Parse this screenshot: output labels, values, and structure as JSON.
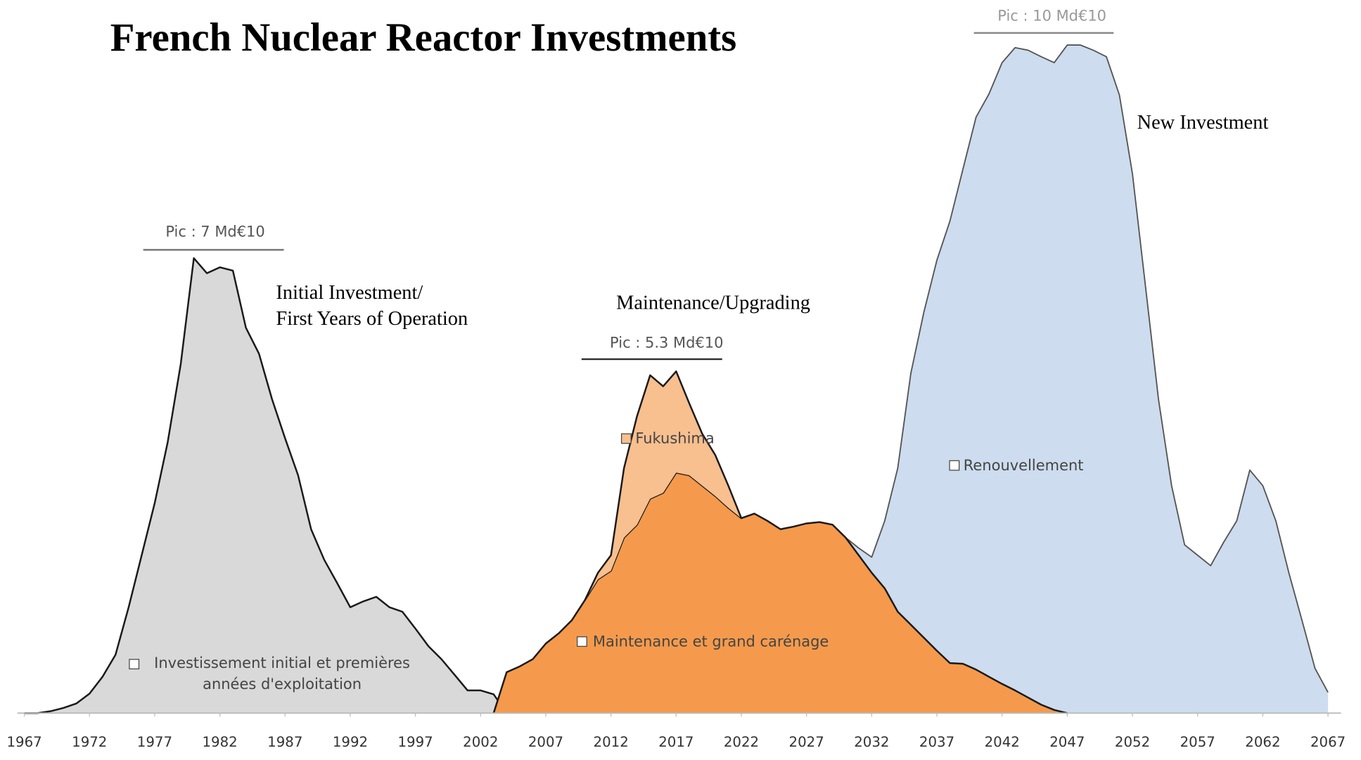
{
  "chart_data": {
    "type": "area",
    "title": "French Nuclear Reactor Investments",
    "annotations": [
      "Pic : 7 Md€10",
      "Pic : 5.3 Md€10",
      "Pic : 10 Md€10",
      "Initial Investment/",
      "First Years of Operation",
      "Maintenance/Upgrading",
      "New Investment"
    ],
    "xlim": [
      1967,
      2067
    ],
    "xticks": [
      1967,
      1972,
      1977,
      1982,
      1987,
      1992,
      1997,
      2002,
      2007,
      2012,
      2017,
      2022,
      2027,
      2032,
      2037,
      2042,
      2047,
      2052,
      2057,
      2062,
      2067
    ],
    "ylim": [
      0,
      11
    ],
    "x": [
      1967,
      1968,
      1969,
      1970,
      1971,
      1972,
      1973,
      1974,
      1975,
      1976,
      1977,
      1978,
      1979,
      1980,
      1981,
      1982,
      1983,
      1984,
      1985,
      1986,
      1987,
      1988,
      1989,
      1990,
      1991,
      1992,
      1993,
      1994,
      1995,
      1996,
      1997,
      1998,
      1999,
      2000,
      2001,
      2002,
      2003,
      2004,
      2005,
      2006,
      2007,
      2008,
      2009,
      2010,
      2011,
      2012,
      2013,
      2014,
      2015,
      2016,
      2017,
      2018,
      2019,
      2020,
      2021,
      2022,
      2023,
      2024,
      2025,
      2026,
      2027,
      2028,
      2029,
      2030,
      2031,
      2032,
      2033,
      2034,
      2035,
      2036,
      2037,
      2038,
      2039,
      2040,
      2041,
      2042,
      2043,
      2044,
      2045,
      2046,
      2047,
      2048,
      2049,
      2050,
      2051,
      2052,
      2053,
      2054,
      2055,
      2056,
      2057,
      2058,
      2059,
      2060,
      2061,
      2062,
      2063,
      2064,
      2065,
      2066,
      2067
    ],
    "series": [
      {
        "name": "Investissement initial et premières années d'exploitation",
        "color": "#d9d9d9",
        "values": [
          0,
          0,
          0.03,
          0.08,
          0.15,
          0.3,
          0.56,
          0.9,
          1.63,
          2.43,
          3.23,
          4.17,
          5.37,
          7.0,
          6.77,
          6.86,
          6.81,
          5.93,
          5.53,
          4.83,
          4.23,
          3.66,
          2.83,
          2.36,
          2.0,
          1.63,
          1.72,
          1.79,
          1.63,
          1.56,
          1.3,
          1.03,
          0.83,
          0.59,
          0.35,
          0.35,
          0.29,
          0,
          null,
          null,
          null,
          null,
          null,
          null,
          null,
          null,
          null,
          null,
          null,
          null,
          null,
          null,
          null,
          null,
          null,
          null,
          null,
          null,
          null,
          null,
          null,
          null,
          null,
          null,
          null,
          null,
          null,
          null,
          null,
          null,
          null,
          null,
          null,
          null,
          null,
          null,
          null,
          null,
          null,
          null,
          null,
          null,
          null,
          null,
          null,
          null,
          null,
          null,
          null,
          null,
          null,
          null,
          null,
          null,
          null,
          null,
          null,
          null,
          null,
          null,
          null
        ]
      },
      {
        "name": "Maintenance et grand carénage",
        "color": "#f59a4c",
        "values": [
          null,
          null,
          null,
          null,
          null,
          null,
          null,
          null,
          null,
          null,
          null,
          null,
          null,
          null,
          null,
          null,
          null,
          null,
          null,
          null,
          null,
          null,
          null,
          null,
          null,
          null,
          null,
          null,
          null,
          null,
          null,
          null,
          null,
          null,
          null,
          null,
          0,
          0.63,
          0.72,
          0.83,
          1.07,
          1.23,
          1.43,
          1.74,
          2.06,
          2.19,
          2.7,
          2.9,
          3.3,
          3.39,
          3.7,
          3.66,
          3.5,
          3.34,
          3.16,
          3.0,
          3.07,
          2.96,
          2.83,
          2.87,
          2.92,
          2.94,
          2.9,
          2.7,
          2.43,
          2.16,
          1.92,
          1.56,
          1.36,
          1.16,
          0.96,
          0.77,
          0.76,
          0.67,
          0.56,
          0.45,
          0.35,
          0.24,
          0.13,
          0.05,
          0,
          null,
          null,
          null,
          null,
          null,
          null,
          null,
          null,
          null,
          null,
          null,
          null,
          null,
          null,
          null,
          null,
          null,
          null,
          null,
          null
        ]
      },
      {
        "name": "Fukushima",
        "color": "#f8bf8f",
        "stacked": true,
        "values": [
          null,
          null,
          null,
          null,
          null,
          null,
          null,
          null,
          null,
          null,
          null,
          null,
          null,
          null,
          null,
          null,
          null,
          null,
          null,
          null,
          null,
          null,
          null,
          null,
          null,
          null,
          null,
          null,
          null,
          null,
          null,
          null,
          null,
          null,
          null,
          null,
          null,
          null,
          null,
          null,
          null,
          null,
          null,
          0,
          0.1,
          0.24,
          1.07,
          1.67,
          1.9,
          1.64,
          1.56,
          1.11,
          0.8,
          0.63,
          0.34,
          0,
          null,
          null,
          null,
          null,
          null,
          null,
          null,
          null,
          null,
          null,
          null,
          null,
          null,
          null,
          null,
          null,
          null,
          null,
          null,
          null,
          null,
          null,
          null,
          null,
          null,
          null,
          null,
          null,
          null,
          null,
          null,
          null,
          null,
          null,
          null,
          null,
          null,
          null,
          null,
          null,
          null,
          null,
          null,
          null,
          null
        ]
      },
      {
        "name": "Renouvellement",
        "color": "#cddcee",
        "values": [
          null,
          null,
          null,
          null,
          null,
          null,
          null,
          null,
          null,
          null,
          null,
          null,
          null,
          null,
          null,
          null,
          null,
          null,
          null,
          null,
          null,
          null,
          null,
          null,
          null,
          null,
          null,
          null,
          null,
          null,
          null,
          null,
          null,
          null,
          null,
          null,
          null,
          null,
          null,
          null,
          null,
          null,
          null,
          null,
          null,
          null,
          null,
          null,
          null,
          null,
          null,
          null,
          null,
          null,
          null,
          null,
          null,
          null,
          null,
          null,
          null,
          null,
          null,
          2.7,
          2.54,
          2.4,
          2.96,
          3.77,
          5.23,
          6.17,
          6.97,
          7.57,
          8.37,
          9.17,
          9.53,
          10.01,
          10.24,
          10.2,
          10.1,
          10.01,
          10.28,
          10.28,
          10.2,
          10.1,
          9.51,
          8.3,
          6.57,
          4.83,
          3.5,
          2.59,
          2.43,
          2.27,
          2.63,
          2.96,
          3.74,
          3.5,
          2.96,
          2.16,
          1.43,
          0.69,
          0.32
        ]
      }
    ]
  }
}
